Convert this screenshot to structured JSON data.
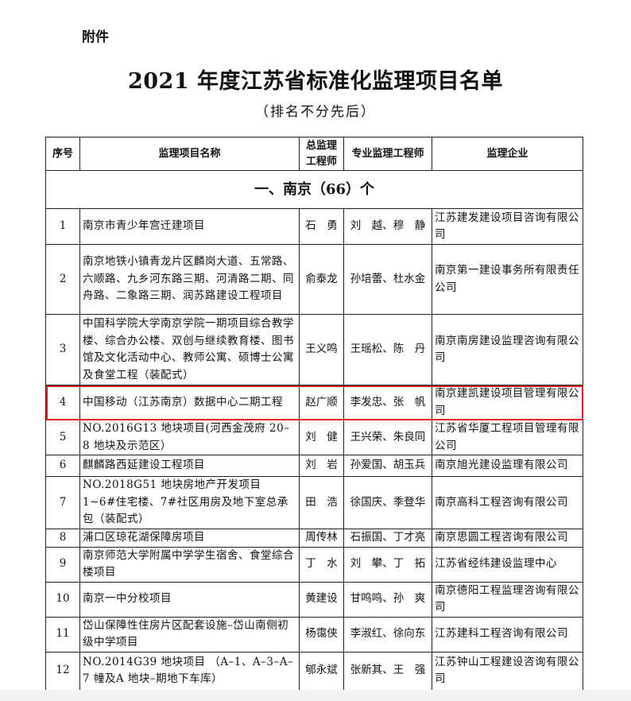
{
  "doc": {
    "attachment": "附件",
    "title": "2021 年度江苏省标准化监理项目名单",
    "subtitle": "（排名不分先后）"
  },
  "table": {
    "headers": [
      "序号",
      "监理项目名称",
      "总监理工程师",
      "专业监理工程师",
      "监理企业"
    ],
    "section": "一、南京（66）个",
    "highlight_color": "#e52222",
    "rows": [
      {
        "no": "1",
        "name": "南京市青少年宫迁建项目",
        "chief": "石　勇",
        "eng": "刘　越、穆　静",
        "co": "江苏建发建设项目咨询有限公司"
      },
      {
        "no": "2",
        "name": "南京地铁小镇青龙片区麟岗大道、五常路、六顺路、九乡河东路三期、河清路二期、同舟路、二象路三期、润苏路建设工程项目",
        "chief": "俞泰龙",
        "eng": "孙培蕾、杜水金",
        "co": "南京第一建设事务所有限责任公司"
      },
      {
        "no": "3",
        "name": "中国科学院大学南京学院一期项目综合教学楼、综合办公楼、双创与继续教育楼、图书馆及文化活动中心、教师公寓、硕博士公寓及食堂工程（装配式）",
        "chief": "王义鸣",
        "eng": "王瑶松、陈　丹",
        "co": "南京南房建设监理咨询有限公司"
      },
      {
        "no": "4",
        "name": "中国移动（江苏南京）数据中心二期工程",
        "chief": "赵广顺",
        "eng": "李发忠、张　帆",
        "co": "南京建凯建设项目管理有限公司",
        "highlighted": true
      },
      {
        "no": "5",
        "name": "NO.2016G13 地块项目(河西金茂府 20–8 地块及示范区）",
        "chief": "刘　健",
        "eng": "王兴荣、朱良同",
        "co": "江苏省华厦工程项目管理有限公司"
      },
      {
        "no": "6",
        "name": "麒麟路西延建设工程项目",
        "chief": "刘　岩",
        "eng": "孙爱国、胡玉兵",
        "co": "南京旭光建设监理有限公司"
      },
      {
        "no": "7",
        "name": "NO.2018G51 地块房地产开发项目 1~6#住宅楼、7#社区用房及地下室总承包（装配式）",
        "chief": "田　浩",
        "eng": "徐国庆、季登华",
        "co": "南京高科工程咨询有限公司"
      },
      {
        "no": "8",
        "name": "浦口区琼花湖保障房项目",
        "chief": "周传林",
        "eng": "石振国、丁才亮",
        "co": "南京思圆工程咨询有限公司"
      },
      {
        "no": "9",
        "name": "南京师范大学附属中学学生宿舍、食堂综合楼项目",
        "chief": "丁　水",
        "eng": "刘　攀、丁　拓",
        "co": "江苏省经纬建设监理中心"
      },
      {
        "no": "10",
        "name": "南京一中分校项目",
        "chief": "黄建设",
        "eng": "甘鸣鸣、孙　爽",
        "co": "南京德阳工程监理咨询有限公司"
      },
      {
        "no": "11",
        "name": "岱山保障性住房片区配套设施–岱山南侧初级中学项目",
        "chief": "杨霭侠",
        "eng": "李淑红、徐向东",
        "co": "江苏建科工程咨询有限公司"
      },
      {
        "no": "12",
        "name": "NO.2014G39 地块项目 （A–1、A–3–A–7 幢及A 地块–期地下车库）",
        "chief": "郇永斌",
        "eng": "张新其、王　强",
        "co": "江苏钟山工程建设咨询有限公司"
      }
    ]
  }
}
